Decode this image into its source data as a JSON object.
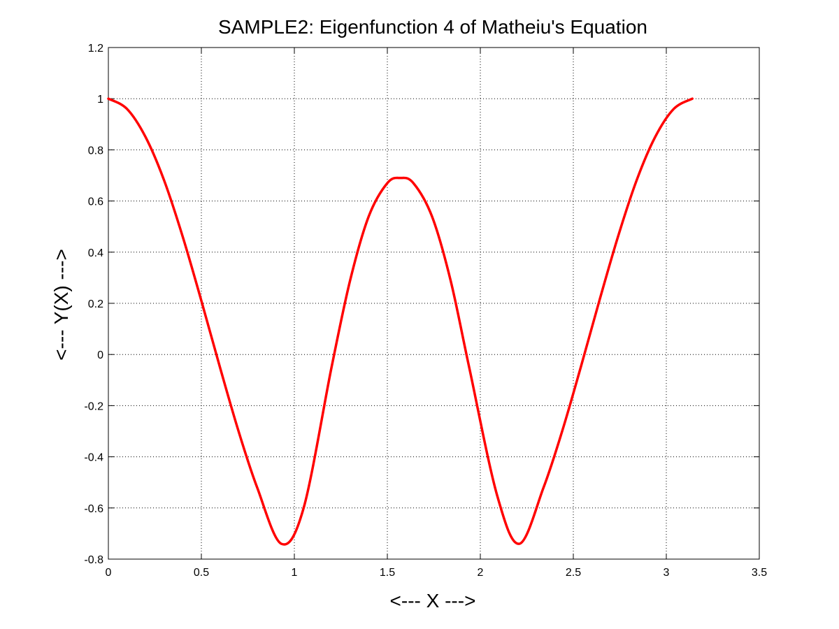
{
  "chart_data": {
    "type": "line",
    "title": "SAMPLE2: Eigenfunction 4 of Matheiu's Equation",
    "xlabel": "<--- X --->",
    "ylabel": "<--- Y(X) --->",
    "xlim": [
      0,
      3.5
    ],
    "ylim": [
      -0.8,
      1.2
    ],
    "x_ticks": [
      0,
      0.5,
      1,
      1.5,
      2,
      2.5,
      3,
      3.5
    ],
    "y_ticks": [
      -0.8,
      -0.6,
      -0.4,
      -0.2,
      0,
      0.2,
      0.4,
      0.6,
      0.8,
      1,
      1.2
    ],
    "x_tick_labels": [
      "0",
      "0.5",
      "1",
      "1.5",
      "2",
      "2.5",
      "3",
      "3.5"
    ],
    "y_tick_labels": [
      "-0.8",
      "-0.6",
      "-0.4",
      "-0.2",
      "0",
      "0.2",
      "0.4",
      "0.6",
      "0.8",
      "1",
      "1.2"
    ],
    "grid": true,
    "grid_style": "dotted",
    "series": [
      {
        "color": "#ff0000",
        "x": [
          0,
          0.1,
          0.2,
          0.3,
          0.4,
          0.5,
          0.6,
          0.7,
          0.8,
          0.93,
          1.05,
          1.2,
          1.3,
          1.4,
          1.5,
          1.57,
          1.64,
          1.74,
          1.84,
          1.94,
          2.09,
          2.21,
          2.34,
          2.44,
          2.54,
          2.64,
          2.74,
          2.84,
          2.94,
          3.04,
          3.14
        ],
        "y": [
          1.0,
          0.96,
          0.85,
          0.68,
          0.46,
          0.21,
          -0.05,
          -0.3,
          -0.52,
          -0.74,
          -0.6,
          -0.05,
          0.29,
          0.54,
          0.67,
          0.69,
          0.67,
          0.54,
          0.29,
          -0.05,
          -0.55,
          -0.74,
          -0.52,
          -0.3,
          -0.05,
          0.21,
          0.46,
          0.68,
          0.85,
          0.96,
          1.0
        ]
      }
    ]
  }
}
